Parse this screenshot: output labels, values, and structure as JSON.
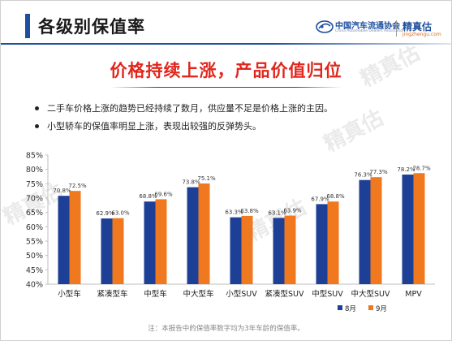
{
  "header": {
    "title": "各级别保值率",
    "org_name": "中国汽车流通协会",
    "org_name_en": "China Automobile Dealers Association",
    "brand_name": "精真估",
    "brand_url": "jingzhengu.com"
  },
  "watermark_text": "精真估",
  "headline": "价格持续上涨，产品价值归位",
  "bullets": [
    "二手车价格上涨的趋势已经持续了数月，供应量不足是价格上涨的主因。",
    "小型轿车的保值率明显上涨，表现出较强的反弹势头。"
  ],
  "chart_data": {
    "type": "bar",
    "categories": [
      "小型车",
      "紧凑型车",
      "中型车",
      "中大型车",
      "小型SUV",
      "紧凑型SUV",
      "中型SUV",
      "中大型SUV",
      "MPV"
    ],
    "series": [
      {
        "name": "8月",
        "values": [
          70.8,
          62.9,
          68.8,
          73.8,
          63.3,
          63.1,
          67.9,
          76.3,
          78.2
        ],
        "color": "#1d3f95"
      },
      {
        "name": "9月",
        "values": [
          72.5,
          63.0,
          69.6,
          75.1,
          63.8,
          63.9,
          68.8,
          77.3,
          78.7
        ],
        "color": "#f0781e"
      }
    ],
    "ylim": [
      40,
      85
    ],
    "yticks": [
      40,
      45,
      50,
      55,
      60,
      65,
      70,
      75,
      80,
      85
    ],
    "ytick_suffix": "%",
    "value_suffix": "%",
    "gridlines": false,
    "legend_position": "bottom-right"
  },
  "footnote": "注：本报告中的保值率数字均为3年车龄的保值率。"
}
